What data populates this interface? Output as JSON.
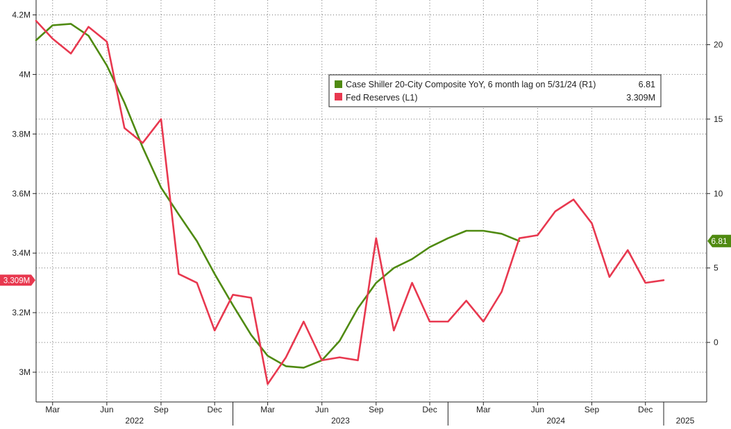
{
  "chart_data": {
    "type": "line",
    "title": "",
    "legend": {
      "placement": "top-center",
      "entries": [
        {
          "label": "Case Shiller 20-City Composite YoY, 6 month lag on 5/31/24 (R1)",
          "value": "6.81",
          "color": "#4f8a10"
        },
        {
          "label": "Fed Reserves (L1)",
          "value": "3.309M",
          "color": "#e8384f"
        }
      ]
    },
    "left_axis": {
      "label": "",
      "range": [
        2.9,
        4.25
      ],
      "ticks": [
        {
          "value": 4.2,
          "label": "4.2M"
        },
        {
          "value": 4.0,
          "label": "4M"
        },
        {
          "value": 3.8,
          "label": "3.8M"
        },
        {
          "value": 3.6,
          "label": "3.6M"
        },
        {
          "value": 3.4,
          "label": "3.4M"
        },
        {
          "value": 3.2,
          "label": "3.2M"
        },
        {
          "value": 3.0,
          "label": "3M"
        }
      ],
      "current_badge": {
        "value": 3.309,
        "label": "3.309M",
        "color": "#e8384f"
      }
    },
    "right_axis": {
      "label": "",
      "range": [
        -4,
        23
      ],
      "ticks": [
        {
          "value": 20,
          "label": "20"
        },
        {
          "value": 15,
          "label": "15"
        },
        {
          "value": 10,
          "label": "10"
        },
        {
          "value": 5,
          "label": "5"
        },
        {
          "value": 0,
          "label": "0"
        }
      ],
      "current_badge": {
        "value": 6.81,
        "label": "6.81",
        "color": "#4f8a10"
      }
    },
    "x_axis": {
      "range": [
        "2022-02-01",
        "2025-03-15"
      ],
      "month_ticks": [
        {
          "date": "2022-03-01",
          "label": "Mar"
        },
        {
          "date": "2022-06-01",
          "label": "Jun"
        },
        {
          "date": "2022-09-01",
          "label": "Sep"
        },
        {
          "date": "2022-12-01",
          "label": "Dec"
        },
        {
          "date": "2023-03-01",
          "label": "Mar"
        },
        {
          "date": "2023-06-01",
          "label": "Jun"
        },
        {
          "date": "2023-09-01",
          "label": "Sep"
        },
        {
          "date": "2023-12-01",
          "label": "Dec"
        },
        {
          "date": "2024-03-01",
          "label": "Mar"
        },
        {
          "date": "2024-06-01",
          "label": "Jun"
        },
        {
          "date": "2024-09-01",
          "label": "Sep"
        },
        {
          "date": "2024-12-01",
          "label": "Dec"
        }
      ],
      "year_ticks": [
        {
          "label": "2022",
          "start": "2022-01-01",
          "end": "2023-01-01"
        },
        {
          "label": "2023",
          "start": "2023-01-01",
          "end": "2024-01-01"
        },
        {
          "label": "2024",
          "start": "2024-01-01",
          "end": "2025-01-01"
        },
        {
          "label": "2025",
          "start": "2025-01-01",
          "end": "2025-03-15"
        }
      ]
    },
    "grid": true,
    "series": [
      {
        "name": "Case Shiller 20-City Composite YoY, 6 month lag on 5/31/24 (R1)",
        "axis": "right",
        "color": "#4f8a10",
        "points": [
          [
            "2022-02-01",
            20.3
          ],
          [
            "2022-03-01",
            21.3
          ],
          [
            "2022-04-01",
            21.4
          ],
          [
            "2022-05-01",
            20.6
          ],
          [
            "2022-06-01",
            18.6
          ],
          [
            "2022-07-01",
            16.1
          ],
          [
            "2022-08-01",
            13.1
          ],
          [
            "2022-09-01",
            10.4
          ],
          [
            "2022-10-01",
            8.6
          ],
          [
            "2022-11-01",
            6.8
          ],
          [
            "2022-12-01",
            4.6
          ],
          [
            "2023-01-01",
            2.5
          ],
          [
            "2023-02-01",
            0.5
          ],
          [
            "2023-03-01",
            -0.9
          ],
          [
            "2023-04-01",
            -1.6
          ],
          [
            "2023-05-01",
            -1.7
          ],
          [
            "2023-06-01",
            -1.2
          ],
          [
            "2023-07-01",
            0.1
          ],
          [
            "2023-08-01",
            2.3
          ],
          [
            "2023-09-01",
            4.0
          ],
          [
            "2023-10-01",
            5.0
          ],
          [
            "2023-11-01",
            5.6
          ],
          [
            "2023-12-01",
            6.4
          ],
          [
            "2024-01-01",
            7.0
          ],
          [
            "2024-02-01",
            7.5
          ],
          [
            "2024-03-01",
            7.5
          ],
          [
            "2024-04-01",
            7.3
          ],
          [
            "2024-05-01",
            6.81
          ]
        ]
      },
      {
        "name": "Fed Reserves (L1)",
        "axis": "left",
        "color": "#e8384f",
        "points": [
          [
            "2022-02-01",
            4.18
          ],
          [
            "2022-03-01",
            4.12
          ],
          [
            "2022-04-01",
            4.07
          ],
          [
            "2022-05-01",
            4.16
          ],
          [
            "2022-06-01",
            4.11
          ],
          [
            "2022-07-01",
            3.82
          ],
          [
            "2022-08-01",
            3.77
          ],
          [
            "2022-09-01",
            3.85
          ],
          [
            "2022-10-01",
            3.33
          ],
          [
            "2022-11-01",
            3.3
          ],
          [
            "2022-12-01",
            3.14
          ],
          [
            "2023-01-01",
            3.26
          ],
          [
            "2023-02-01",
            3.25
          ],
          [
            "2023-03-01",
            2.96
          ],
          [
            "2023-04-01",
            3.05
          ],
          [
            "2023-05-01",
            3.17
          ],
          [
            "2023-06-01",
            3.04
          ],
          [
            "2023-07-01",
            3.05
          ],
          [
            "2023-08-01",
            3.04
          ],
          [
            "2023-09-01",
            3.45
          ],
          [
            "2023-10-01",
            3.14
          ],
          [
            "2023-11-01",
            3.3
          ],
          [
            "2023-12-01",
            3.17
          ],
          [
            "2024-01-01",
            3.17
          ],
          [
            "2024-02-01",
            3.24
          ],
          [
            "2024-03-01",
            3.17
          ],
          [
            "2024-04-01",
            3.27
          ],
          [
            "2024-05-01",
            3.45
          ],
          [
            "2024-06-01",
            3.46
          ],
          [
            "2024-07-01",
            3.54
          ],
          [
            "2024-08-01",
            3.58
          ],
          [
            "2024-09-01",
            3.5
          ],
          [
            "2024-10-01",
            3.32
          ],
          [
            "2024-11-01",
            3.41
          ],
          [
            "2024-12-01",
            3.3
          ],
          [
            "2025-01-01",
            3.309
          ]
        ]
      }
    ]
  }
}
